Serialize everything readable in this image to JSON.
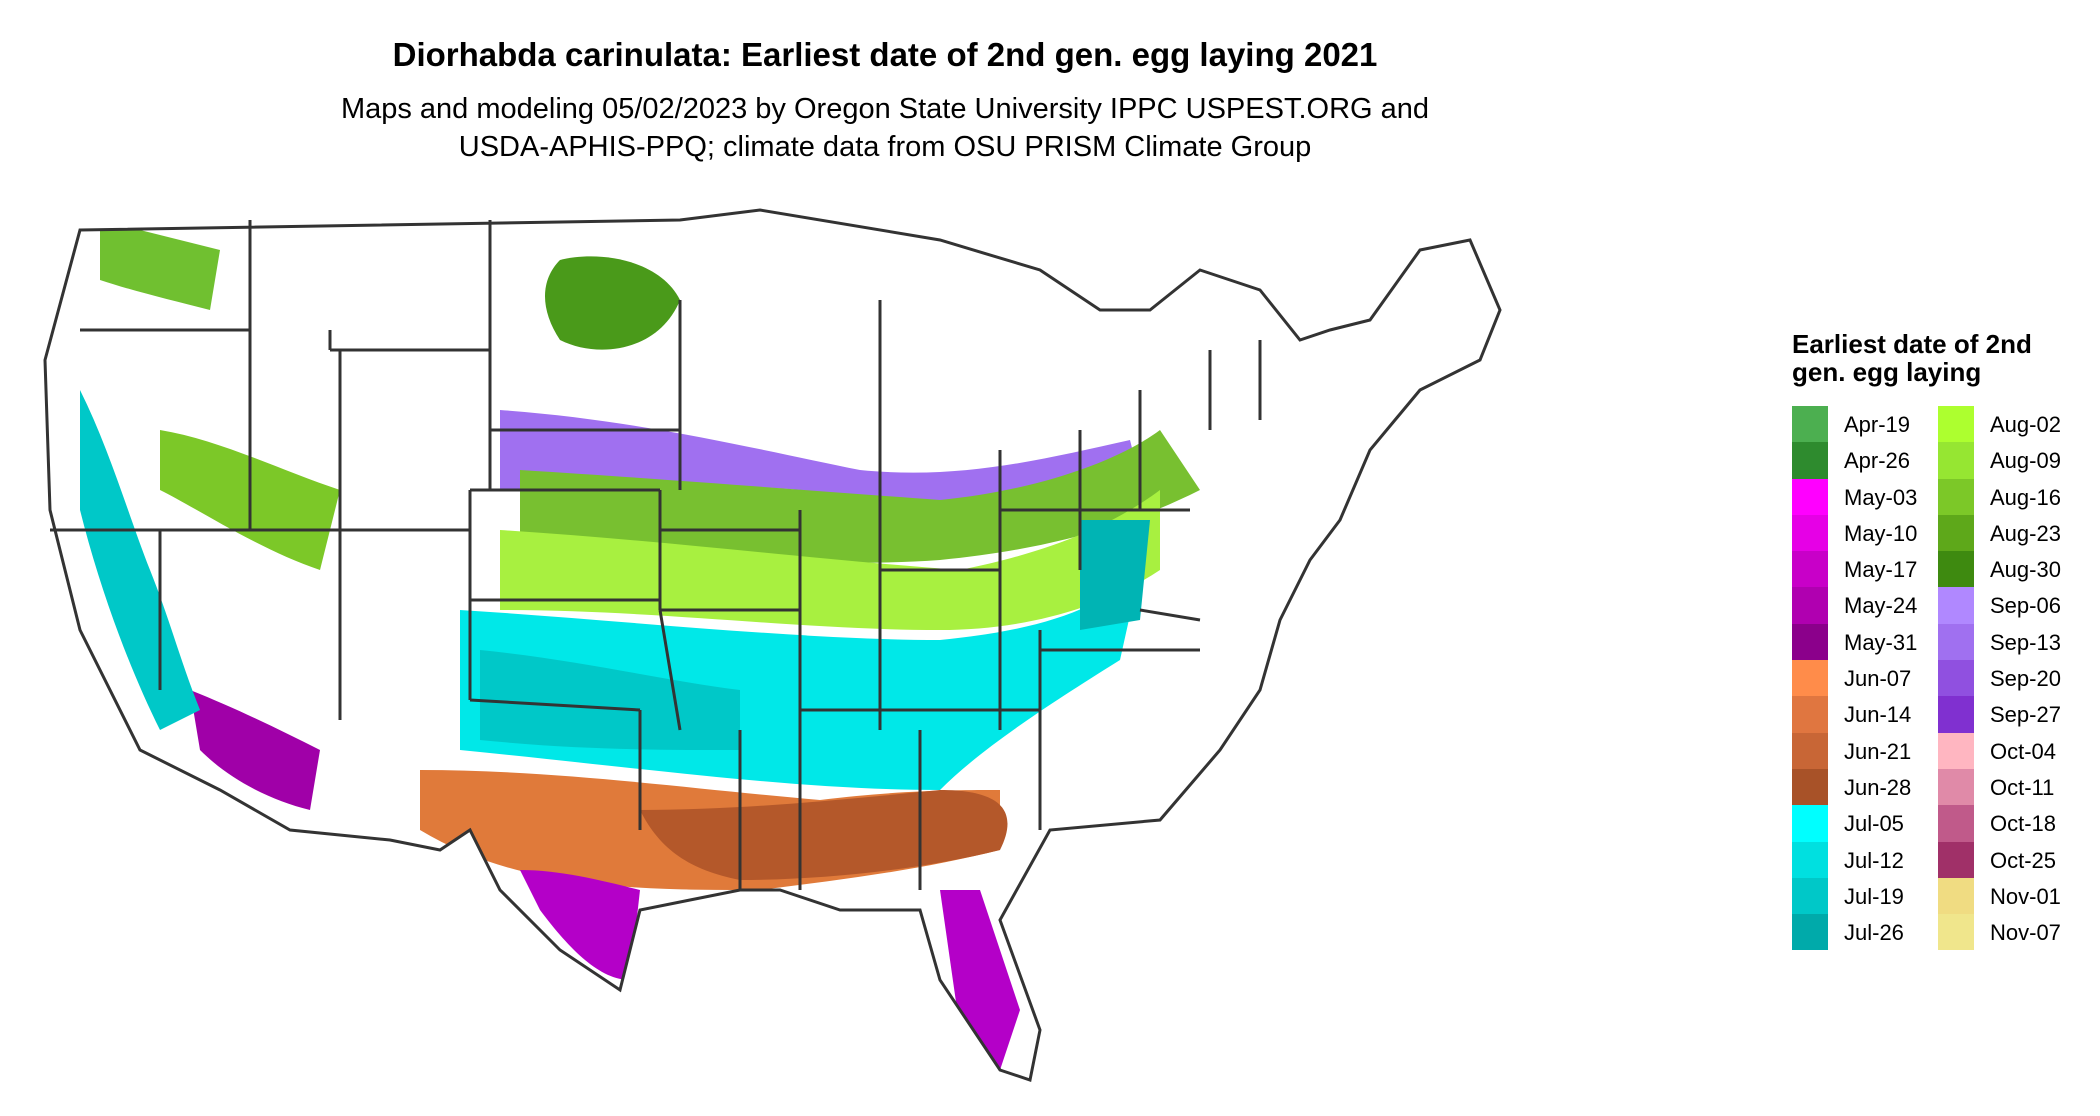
{
  "header": {
    "title": "Diorhabda carinulata: Earliest date of 2nd gen. egg laying 2021",
    "subtitle_line1": "Maps and modeling 05/02/2023 by Oregon State University IPPC USPEST.ORG and",
    "subtitle_line2": "USDA-APHIS-PPQ; climate data from OSU PRISM Climate Group"
  },
  "map": {
    "region": "Contiguous United States",
    "boundary_color": "#333333",
    "zones": [
      {
        "name": "south-florida",
        "color": "#b400c8"
      },
      {
        "name": "south-texas",
        "color": "#b400c8"
      },
      {
        "name": "southern-arizona",
        "color": "#a000a8"
      },
      {
        "name": "gulf-coast",
        "color": "#b4582a"
      },
      {
        "name": "south-central",
        "color": "#e07a3a"
      },
      {
        "name": "southeast-belt",
        "color": "#00e8e8"
      },
      {
        "name": "mid-south",
        "color": "#00c8c8"
      },
      {
        "name": "lower-midwest",
        "color": "#a8f040"
      },
      {
        "name": "corn-belt",
        "color": "#78c030"
      },
      {
        "name": "northern-fringe",
        "color": "#a070f0"
      },
      {
        "name": "northern-plains-green",
        "color": "#4a9a1a"
      },
      {
        "name": "pacific-northwest",
        "color": "#70c030"
      },
      {
        "name": "california-valley",
        "color": "#00c8c8"
      },
      {
        "name": "atlantic-coast",
        "color": "#00b4b4"
      }
    ]
  },
  "legend": {
    "title": "Earliest date of 2nd gen. egg laying",
    "items": [
      {
        "label": "Apr-19",
        "color": "#4caf50"
      },
      {
        "label": "Apr-26",
        "color": "#2e8b2e"
      },
      {
        "label": "May-03",
        "color": "#ff00ff"
      },
      {
        "label": "May-10",
        "color": "#e600e6"
      },
      {
        "label": "May-17",
        "color": "#c800c8"
      },
      {
        "label": "May-24",
        "color": "#b000b0"
      },
      {
        "label": "May-31",
        "color": "#8b008b"
      },
      {
        "label": "Jun-07",
        "color": "#ff8c4a"
      },
      {
        "label": "Jun-14",
        "color": "#e07640"
      },
      {
        "label": "Jun-21",
        "color": "#c86636"
      },
      {
        "label": "Jun-28",
        "color": "#a85228"
      },
      {
        "label": "Jul-05",
        "color": "#00ffff"
      },
      {
        "label": "Jul-12",
        "color": "#00e0e0"
      },
      {
        "label": "Jul-19",
        "color": "#00c8c8"
      },
      {
        "label": "Jul-26",
        "color": "#00aaaa"
      },
      {
        "label": "Aug-02",
        "color": "#adff2f"
      },
      {
        "label": "Aug-09",
        "color": "#96e632"
      },
      {
        "label": "Aug-16",
        "color": "#7cc828"
      },
      {
        "label": "Aug-23",
        "color": "#5ea81a"
      },
      {
        "label": "Aug-30",
        "color": "#3e8a10"
      },
      {
        "label": "Sep-06",
        "color": "#b088ff"
      },
      {
        "label": "Sep-13",
        "color": "#a070f0"
      },
      {
        "label": "Sep-20",
        "color": "#9050e0"
      },
      {
        "label": "Sep-27",
        "color": "#8030d0"
      },
      {
        "label": "Oct-04",
        "color": "#ffb6c1"
      },
      {
        "label": "Oct-11",
        "color": "#e08aa8"
      },
      {
        "label": "Oct-18",
        "color": "#c05a8a"
      },
      {
        "label": "Oct-25",
        "color": "#a03068"
      },
      {
        "label": "Nov-01",
        "color": "#f0dc82"
      },
      {
        "label": "Nov-07",
        "color": "#f0e68c"
      }
    ]
  }
}
